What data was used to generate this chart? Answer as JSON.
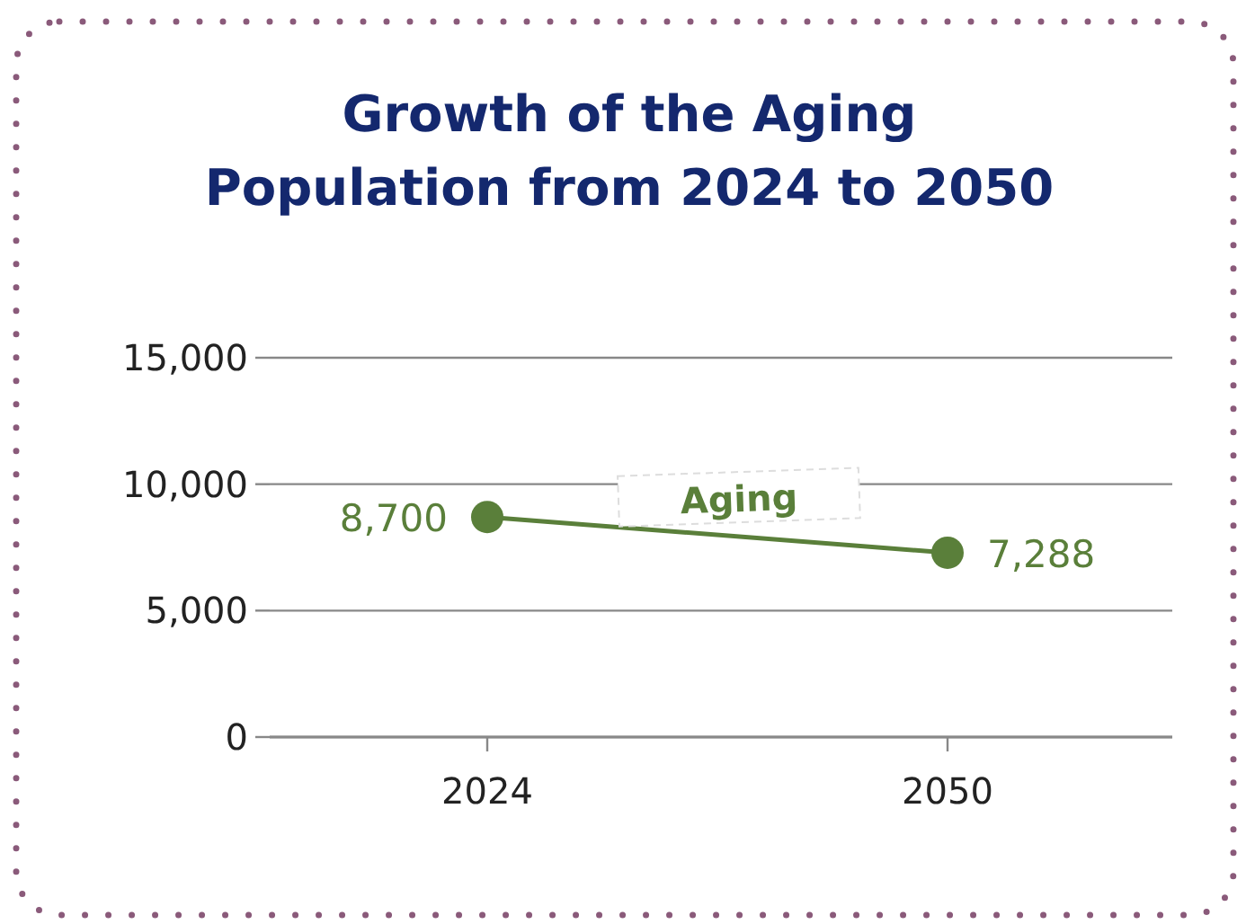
{
  "chart_data": {
    "type": "line",
    "title": "Growth of the Aging\nPopulation from 2024 to 2050",
    "categories": [
      "2024",
      "2050"
    ],
    "series": [
      {
        "name": "Aging",
        "color": "#5a7f3a",
        "values": [
          8700,
          7288
        ]
      }
    ],
    "ylim": [
      0,
      15000
    ],
    "yticks": [
      {
        "value": 0,
        "label": "0"
      },
      {
        "value": 5000,
        "label": "5,000"
      },
      {
        "value": 10000,
        "label": "10,000"
      },
      {
        "value": 15000,
        "label": "15,000"
      }
    ],
    "grid": "y",
    "marker": "circle",
    "value_labels": [
      "8,700",
      "7,288"
    ]
  }
}
